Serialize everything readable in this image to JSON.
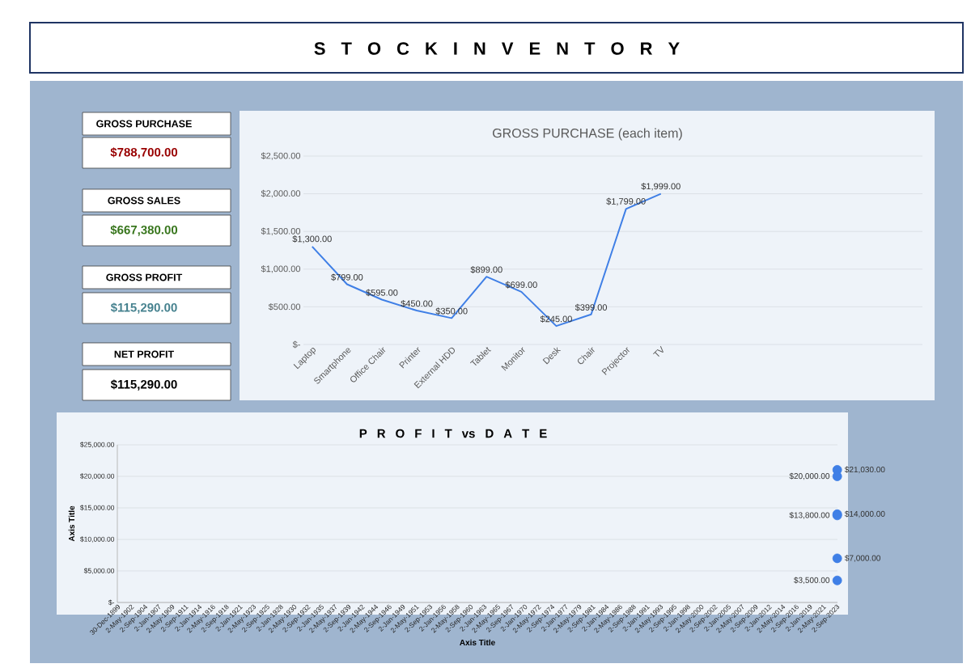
{
  "chart_data": [
    {
      "type": "other",
      "title": "S T O C K I N V E N T O R Y",
      "annotations": [
        "GROSS PURCHASE",
        "$788,700.00",
        "GROSS SALES",
        "$667,380.00",
        "GROSS PROFIT",
        "$115,290.00",
        "NET PROFIT",
        "$115,290.00"
      ]
    },
    {
      "type": "line",
      "title": "GROSS PURCHASE (each item)",
      "categories": [
        "Laptop",
        "Smartphone",
        "Office Chair",
        "Printer",
        "External HDD",
        "Tablet",
        "Monitor",
        "Desk",
        "Chair",
        "Projector",
        "TV"
      ],
      "values": [
        1300,
        799,
        595,
        450,
        350,
        899,
        699,
        245,
        399,
        1799,
        1999
      ],
      "value_labels": [
        "$1,300.00",
        "$799.00",
        "$595.00",
        "$450.00",
        "$350.00",
        "$899.00",
        "$699.00",
        "$245.00",
        "$399.00",
        "$1,799.00",
        "$1,999.00"
      ],
      "color": "#3f7fe6",
      "grid": "y",
      "ylim": [
        0,
        2500
      ],
      "yticks": [
        {
          "value": 0,
          "label": "$-"
        },
        {
          "value": 500,
          "label": "$500.00"
        },
        {
          "value": 1000,
          "label": "$1,000.00"
        },
        {
          "value": 1500,
          "label": "$1,500.00"
        },
        {
          "value": 2000,
          "label": "$2,000.00"
        },
        {
          "value": 2500,
          "label": "$2,500.00"
        }
      ]
    },
    {
      "type": "scatter",
      "title": "P R O F I T vs D A T E",
      "xlabel": "Axis Title",
      "ylabel": "Axis Title",
      "x": [
        "2023-10-15",
        "2023-10-15",
        "2023-10-15",
        "2023-10-15",
        "2023-10-15",
        "2023-10-15"
      ],
      "values": [
        21030,
        20000,
        14000,
        13800,
        7000,
        3500
      ],
      "value_labels": [
        "$21,030.00",
        "$20,000.00",
        "$14,000.00",
        "$13,800.00",
        "$7,000.00",
        "$3,500.00"
      ],
      "color": "#3f7fe6",
      "marker": "circle",
      "grid": "y",
      "xlim": [
        "1899-12-30",
        "2023-11-01"
      ],
      "xticks": [
        {
          "value": "1899-12-30",
          "label": "30-Dec-1899"
        },
        {
          "value": "1902-05-02",
          "label": "2-May-1902"
        },
        {
          "value": "1904-09-02",
          "label": "2-Sep-1904"
        },
        {
          "value": "1907-01-02",
          "label": "2-Jan-1907"
        },
        {
          "value": "1909-05-02",
          "label": "2-May-1909"
        },
        {
          "value": "1911-09-02",
          "label": "2-Sep-1911"
        },
        {
          "value": "1914-01-02",
          "label": "2-Jan-1914"
        },
        {
          "value": "1916-05-02",
          "label": "2-May-1916"
        },
        {
          "value": "1918-09-02",
          "label": "2-Sep-1918"
        },
        {
          "value": "1921-01-02",
          "label": "2-Jan-1921"
        },
        {
          "value": "1923-05-02",
          "label": "2-May-1923"
        },
        {
          "value": "1925-09-02",
          "label": "2-Sep-1925"
        },
        {
          "value": "1928-01-02",
          "label": "2-Jan-1928"
        },
        {
          "value": "1930-05-02",
          "label": "2-May-1930"
        },
        {
          "value": "1932-09-02",
          "label": "2-Sep-1932"
        },
        {
          "value": "1935-01-02",
          "label": "2-Jan-1935"
        },
        {
          "value": "1937-05-02",
          "label": "2-May-1937"
        },
        {
          "value": "1939-09-02",
          "label": "2-Sep-1939"
        },
        {
          "value": "1942-01-02",
          "label": "2-Jan-1942"
        },
        {
          "value": "1944-05-02",
          "label": "2-May-1944"
        },
        {
          "value": "1946-09-02",
          "label": "2-Sep-1946"
        },
        {
          "value": "1949-01-02",
          "label": "2-Jan-1949"
        },
        {
          "value": "1951-05-02",
          "label": "2-May-1951"
        },
        {
          "value": "1953-09-02",
          "label": "2-Sep-1953"
        },
        {
          "value": "1956-01-02",
          "label": "2-Jan-1956"
        },
        {
          "value": "1958-05-02",
          "label": "2-May-1958"
        },
        {
          "value": "1960-09-02",
          "label": "2-Sep-1960"
        },
        {
          "value": "1963-01-02",
          "label": "2-Jan-1963"
        },
        {
          "value": "1965-05-02",
          "label": "2-May-1965"
        },
        {
          "value": "1967-09-02",
          "label": "2-Sep-1967"
        },
        {
          "value": "1970-01-02",
          "label": "2-Jan-1970"
        },
        {
          "value": "1972-05-02",
          "label": "2-May-1972"
        },
        {
          "value": "1974-09-02",
          "label": "2-Sep-1974"
        },
        {
          "value": "1977-01-02",
          "label": "2-Jan-1977"
        },
        {
          "value": "1979-05-02",
          "label": "2-May-1979"
        },
        {
          "value": "1981-09-02",
          "label": "2-Sep-1981"
        },
        {
          "value": "1984-01-02",
          "label": "2-Jan-1984"
        },
        {
          "value": "1986-05-02",
          "label": "2-May-1986"
        },
        {
          "value": "1988-09-02",
          "label": "2-Sep-1988"
        },
        {
          "value": "1991-01-02",
          "label": "2-Jan-1991"
        },
        {
          "value": "1993-05-02",
          "label": "2-May-1993"
        },
        {
          "value": "1995-09-02",
          "label": "2-Sep-1995"
        },
        {
          "value": "1998-01-02",
          "label": "2-Jan-1998"
        },
        {
          "value": "2000-05-02",
          "label": "2-May-2000"
        },
        {
          "value": "2002-09-02",
          "label": "2-Sep-2002"
        },
        {
          "value": "2005-01-02",
          "label": "2-Jan-2005"
        },
        {
          "value": "2007-05-02",
          "label": "2-May-2007"
        },
        {
          "value": "2009-09-02",
          "label": "2-Sep-2009"
        },
        {
          "value": "2012-01-02",
          "label": "2-Jan-2012"
        },
        {
          "value": "2014-05-02",
          "label": "2-May-2014"
        },
        {
          "value": "2016-09-02",
          "label": "2-Sep-2016"
        },
        {
          "value": "2019-01-02",
          "label": "2-Jan-2019"
        },
        {
          "value": "2021-05-02",
          "label": "2-May-2021"
        },
        {
          "value": "2023-09-02",
          "label": "2-Sep-2023"
        }
      ],
      "ylim": [
        0,
        25000
      ],
      "yticks": [
        {
          "value": 0,
          "label": "$-"
        },
        {
          "value": 5000,
          "label": "$5,000.00"
        },
        {
          "value": 10000,
          "label": "$10,000.00"
        },
        {
          "value": 15000,
          "label": "$15,000.00"
        },
        {
          "value": 20000,
          "label": "$20,000.00"
        },
        {
          "value": 25000,
          "label": "$25,000.00"
        }
      ]
    }
  ]
}
